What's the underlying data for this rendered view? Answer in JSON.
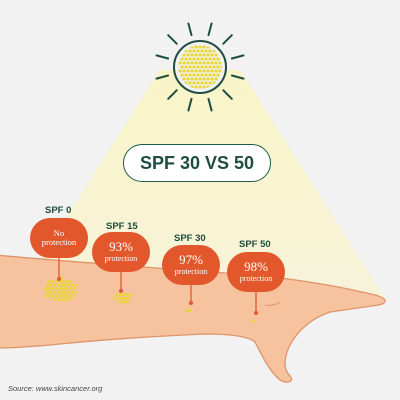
{
  "title": "SPF 30 VS 50",
  "levels": [
    {
      "spf": "SPF 0",
      "pct": "",
      "label": "No protection"
    },
    {
      "spf": "SPF 15",
      "pct": "93%",
      "label": "protection"
    },
    {
      "spf": "SPF 30",
      "pct": "97%",
      "label": "protection"
    },
    {
      "spf": "SPF 50",
      "pct": "98%",
      "label": "protection"
    }
  ],
  "source": "Source: www.skincancer.org",
  "colors": {
    "background": "#f2f2f2",
    "sun_outline": "#1f4d3f",
    "sun_dots": "#e8d636",
    "badge": "#e2572b",
    "arm_skin": "#f6c39e",
    "light_beam": "#fbf5c8"
  }
}
